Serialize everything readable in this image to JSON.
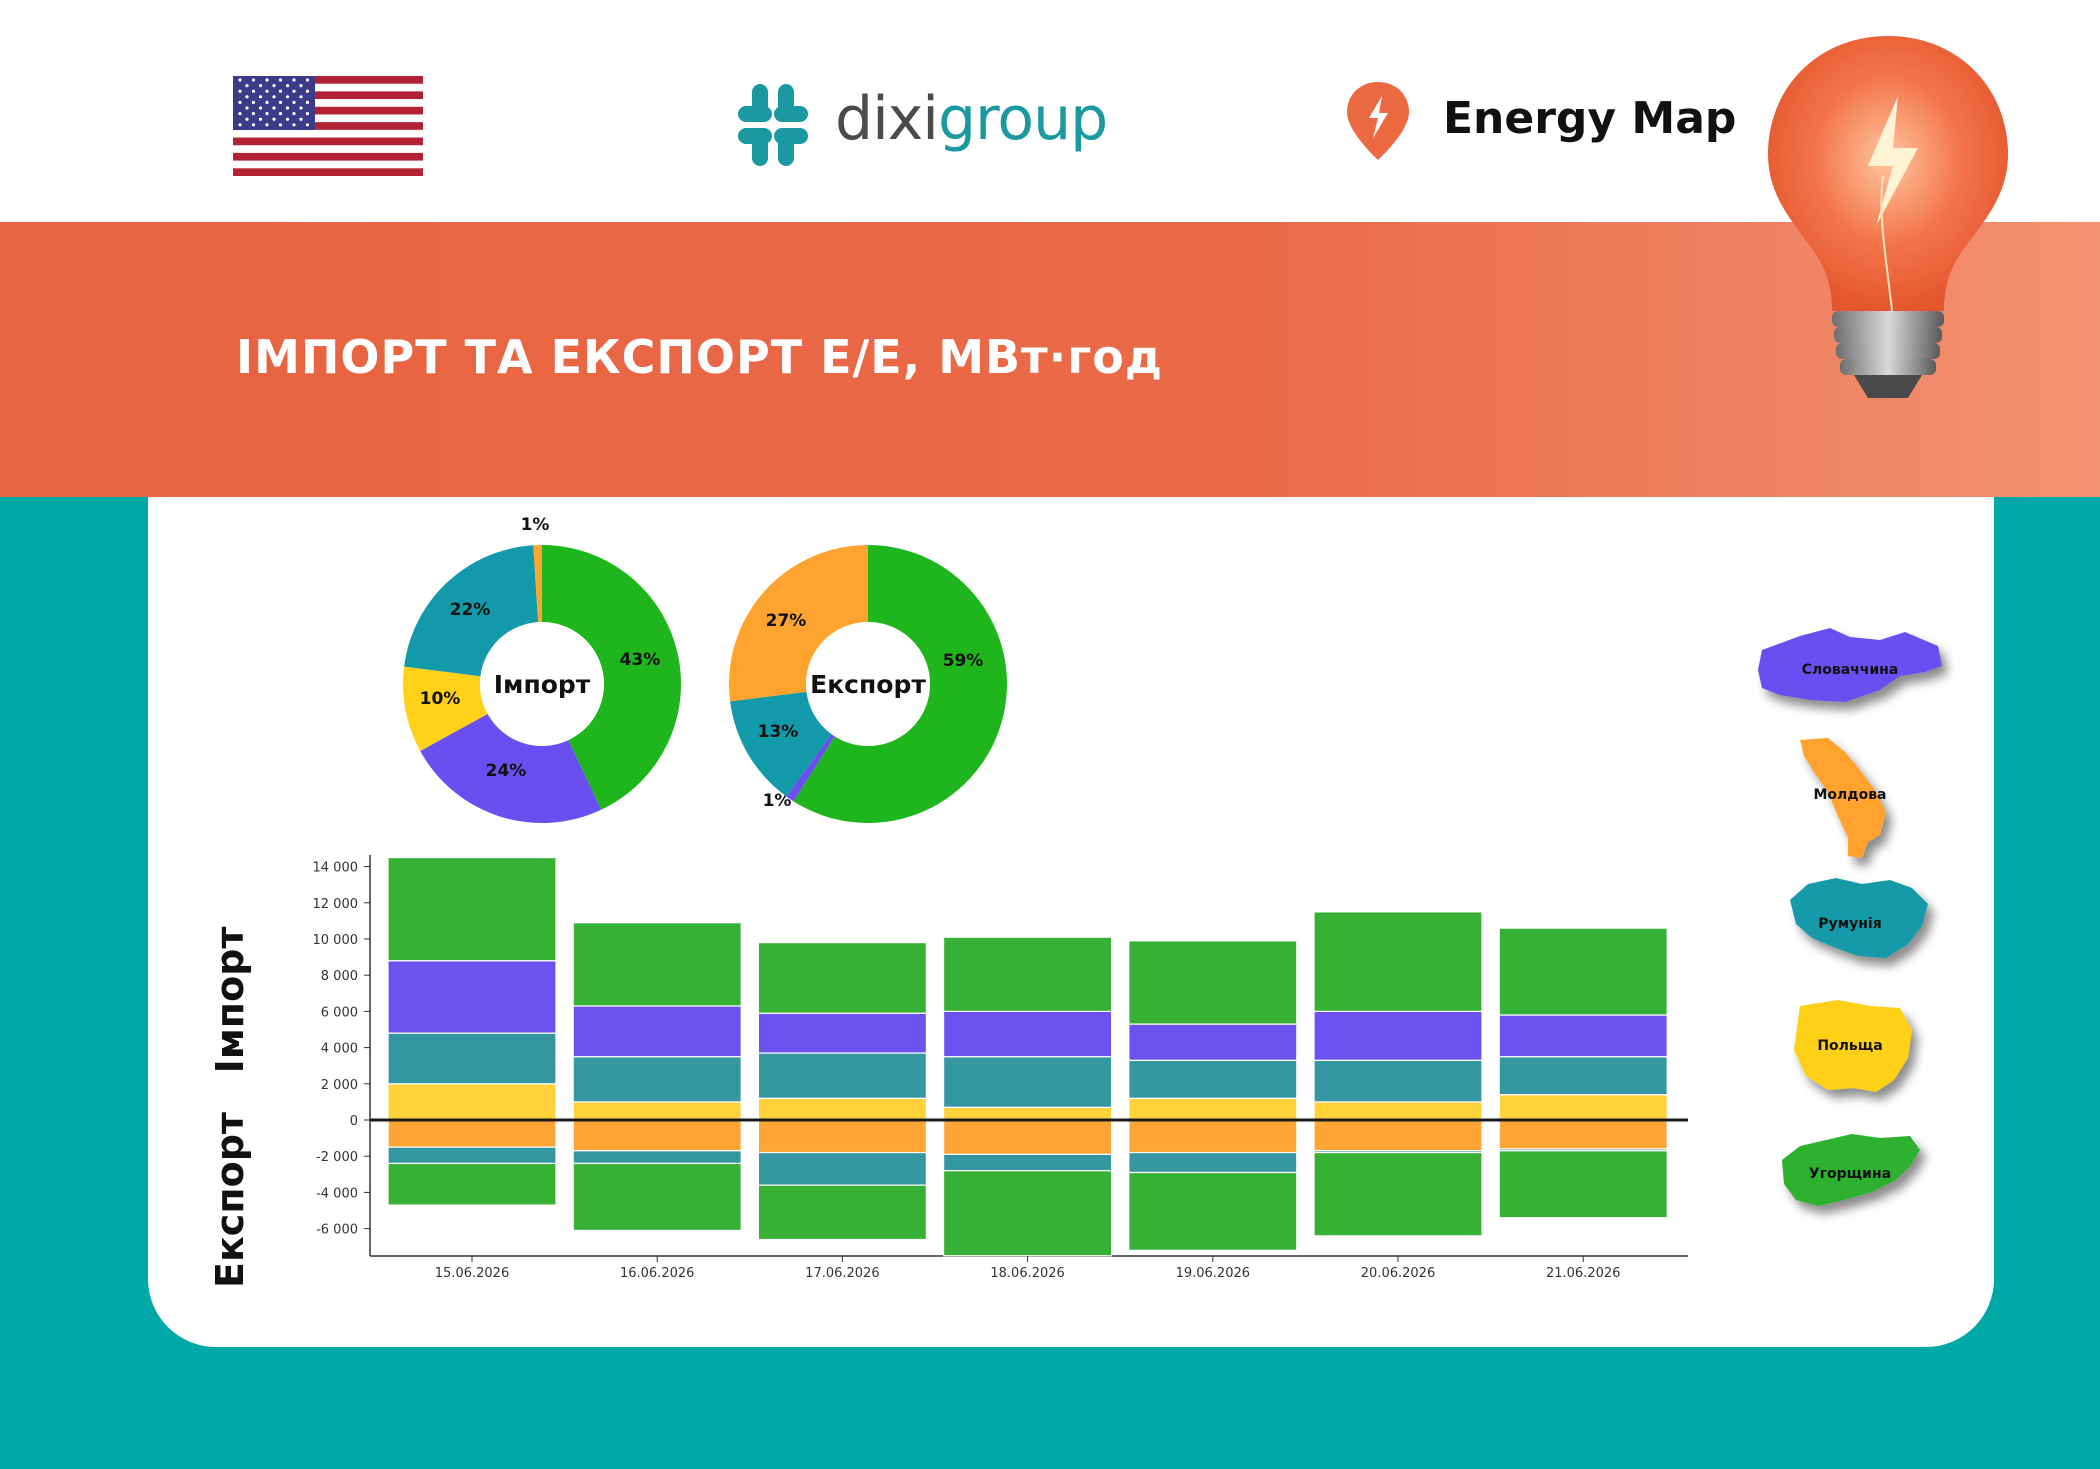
{
  "header": {
    "title": "ІМПОРТ ТА ЕКСПОРТ Е/Е, МВт·год",
    "brand_dixi_prefix": "dixi",
    "brand_dixi_suffix": "group",
    "brand_energymap": "Energy Map"
  },
  "colors": {
    "banner": "#E8633F",
    "teal_bg": "#00A8A8",
    "slovakia": "#6A4FF0",
    "moldova": "#FFA32F",
    "romania": "#139AAA",
    "poland": "#FFD119",
    "hungary": "#2DB12F"
  },
  "legend": [
    {
      "label": "Словаччина",
      "color": "#6A4FF0"
    },
    {
      "label": "Молдова",
      "color": "#FFA32F"
    },
    {
      "label": "Румунія",
      "color": "#139AAA"
    },
    {
      "label": "Польща",
      "color": "#FFD119"
    },
    {
      "label": "Угорщина",
      "color": "#2DB12F"
    }
  ],
  "axis_labels": {
    "import": "Імпорт",
    "export": "Експорт"
  },
  "chart_data": [
    {
      "type": "pie",
      "title": "Імпорт",
      "slices": [
        {
          "name": "Угорщина",
          "value": 43,
          "label": "43%",
          "color": "#1FB51D"
        },
        {
          "name": "Словаччина",
          "value": 24,
          "label": "24%",
          "color": "#6A4FF0"
        },
        {
          "name": "Польща",
          "value": 10,
          "label": "10%",
          "color": "#FFD119"
        },
        {
          "name": "Румунія",
          "value": 22,
          "label": "22%",
          "color": "#139AAA"
        },
        {
          "name": "Молдова",
          "value": 1,
          "label": "1%",
          "color": "#FFA32F"
        }
      ]
    },
    {
      "type": "pie",
      "title": "Експорт",
      "slices": [
        {
          "name": "Угорщина",
          "value": 59,
          "label": "59%",
          "color": "#1FB51D"
        },
        {
          "name": "Словаччина",
          "value": 1,
          "label": "1%",
          "color": "#6A4FF0"
        },
        {
          "name": "Румунія",
          "value": 13,
          "label": "13%",
          "color": "#139AAA"
        },
        {
          "name": "Молдова",
          "value": 27,
          "label": "27%",
          "color": "#FFA32F"
        }
      ]
    },
    {
      "type": "bar",
      "stacked": true,
      "categories": [
        "15.06.2026",
        "16.06.2026",
        "17.06.2026",
        "18.06.2026",
        "19.06.2026",
        "20.06.2026",
        "21.06.2026"
      ],
      "yticks": [
        "14 000",
        "12 000",
        "10 000",
        "8 000",
        "6 000",
        "4 000",
        "2 000",
        "0",
        "-2 000",
        "-4 000",
        "-6 000"
      ],
      "ylim": [
        -7500,
        14600
      ],
      "series": [
        {
          "name": "Польща",
          "color": "#FFD23A",
          "values": [
            2000,
            1000,
            1200,
            700,
            1200,
            1000,
            1400
          ]
        },
        {
          "name": "Румунія",
          "color": "#3497A2",
          "values": [
            2800,
            2500,
            2500,
            2800,
            2100,
            2300,
            2100
          ]
        },
        {
          "name": "Словаччина",
          "color": "#6B52EE",
          "values": [
            4000,
            2800,
            2200,
            2500,
            2000,
            2700,
            2300
          ]
        },
        {
          "name": "Угорщина",
          "color": "#36B135",
          "values": [
            5700,
            4600,
            3900,
            4100,
            4600,
            5500,
            4800
          ]
        },
        {
          "name": "Молдова",
          "color": "#FFA535",
          "values": [
            -1500,
            -1700,
            -1800,
            -1900,
            -1800,
            -1700,
            -1600
          ]
        },
        {
          "name": "Румунія",
          "color": "#3497A2",
          "values": [
            -900,
            -700,
            -1800,
            -900,
            -1100,
            -100,
            -100
          ]
        },
        {
          "name": "Угорщина",
          "color": "#36B135",
          "values": [
            -2300,
            -3700,
            -3000,
            -4700,
            -4300,
            -4600,
            -3700
          ]
        }
      ]
    }
  ]
}
